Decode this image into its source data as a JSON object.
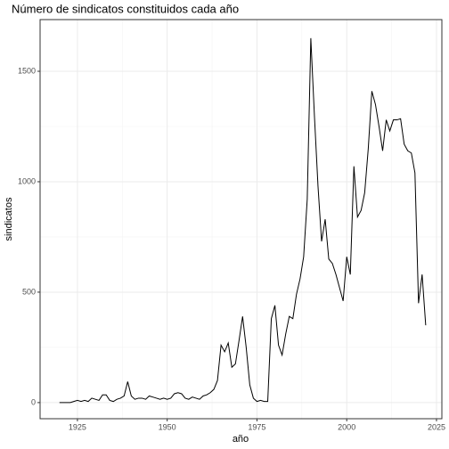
{
  "chart_data": {
    "type": "line",
    "title": "Número de sindicatos constituidos cada año",
    "x_label": "año",
    "y_label": "sindicatos",
    "x": [
      1920,
      1921,
      1922,
      1923,
      1924,
      1925,
      1926,
      1927,
      1928,
      1929,
      1930,
      1931,
      1932,
      1933,
      1934,
      1935,
      1936,
      1937,
      1938,
      1939,
      1940,
      1941,
      1942,
      1943,
      1944,
      1945,
      1946,
      1947,
      1948,
      1949,
      1950,
      1951,
      1952,
      1953,
      1954,
      1955,
      1956,
      1957,
      1958,
      1959,
      1960,
      1961,
      1962,
      1963,
      1964,
      1965,
      1966,
      1967,
      1968,
      1969,
      1970,
      1971,
      1972,
      1973,
      1974,
      1975,
      1976,
      1977,
      1978,
      1979,
      1980,
      1981,
      1982,
      1983,
      1984,
      1985,
      1986,
      1987,
      1988,
      1989,
      1990,
      1991,
      1992,
      1993,
      1994,
      1995,
      1996,
      1997,
      1998,
      1999,
      2000,
      2001,
      2002,
      2003,
      2004,
      2005,
      2006,
      2007,
      2008,
      2009,
      2010,
      2011,
      2012,
      2013,
      2014,
      2015,
      2016,
      2017,
      2018,
      2019,
      2020,
      2021,
      2022
    ],
    "values": [
      0,
      0,
      0,
      0,
      5,
      10,
      5,
      10,
      5,
      20,
      15,
      10,
      35,
      35,
      10,
      5,
      15,
      20,
      30,
      95,
      30,
      15,
      20,
      20,
      15,
      30,
      25,
      20,
      15,
      20,
      15,
      20,
      40,
      45,
      40,
      20,
      15,
      25,
      20,
      15,
      30,
      35,
      45,
      60,
      100,
      260,
      230,
      270,
      160,
      175,
      280,
      390,
      250,
      80,
      20,
      5,
      10,
      5,
      5,
      380,
      440,
      260,
      215,
      310,
      390,
      380,
      490,
      560,
      660,
      920,
      1650,
      1300,
      980,
      730,
      830,
      650,
      630,
      580,
      520,
      460,
      660,
      580,
      1070,
      840,
      870,
      950,
      1150,
      1410,
      1350,
      1250,
      1140,
      1280,
      1230,
      1280,
      1280,
      1285,
      1170,
      1140,
      1130,
      1040,
      450,
      580,
      350
    ],
    "color": "#000000",
    "xlim": [
      1914.6,
      2026.5
    ],
    "xticks": [
      1925,
      1950,
      1975,
      2000,
      2025
    ],
    "ylim": [
      -73,
      1734
    ],
    "yticks": [
      0,
      500,
      1000,
      1500
    ],
    "grid": true
  }
}
